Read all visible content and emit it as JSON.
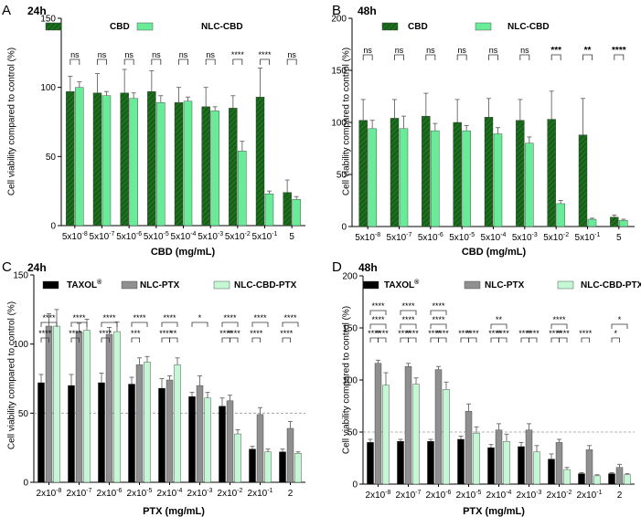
{
  "figure": {
    "colors": {
      "cbd": "#1d6e1d",
      "nlc_cbd": "#69eb98",
      "taxol": "#000000",
      "nlc_ptx": "#8f8f8f",
      "nlc_cbd_ptx": "#c4f7d4"
    }
  },
  "chart_data": [
    {
      "panel": "A",
      "title": "24h",
      "type": "bar",
      "xlabel": "CBD  (mg/mL)",
      "ylabel": "Cell viability compared to control (%)",
      "ylim": [
        0,
        150
      ],
      "yticks": [
        "0",
        "50",
        "100",
        "150"
      ],
      "categories": [
        "5x10-8",
        "5x10-7",
        "5x10-6",
        "5x10-5",
        "5x10-4",
        "5x10-3",
        "5x10-2",
        "5x10-1",
        "5"
      ],
      "category_labels": [
        {
          "base": "5x10",
          "exp": "-8"
        },
        {
          "base": "5x10",
          "exp": "-7"
        },
        {
          "base": "5x10",
          "exp": "-6"
        },
        {
          "base": "5x10",
          "exp": "-5"
        },
        {
          "base": "5x10",
          "exp": "-4"
        },
        {
          "base": "5x10",
          "exp": "-3"
        },
        {
          "base": "5x10",
          "exp": "-2"
        },
        {
          "base": "5x10",
          "exp": "-1"
        },
        {
          "base": "5",
          "exp": ""
        }
      ],
      "series": [
        {
          "name": "CBD",
          "color": "cbd",
          "values": [
            97,
            96,
            96,
            97,
            89,
            86,
            85,
            93,
            24
          ],
          "errors": [
            11,
            14,
            17,
            15,
            11,
            14,
            9,
            21,
            9
          ]
        },
        {
          "name": "NLC-CBD",
          "color": "nlc_cbd",
          "values": [
            100,
            94,
            92,
            89,
            90,
            83,
            54,
            23,
            19
          ],
          "errors": [
            4,
            3,
            4,
            5,
            3,
            3,
            7,
            2,
            2
          ]
        }
      ],
      "significance": [
        {
          "pair": [
            0,
            1
          ],
          "level": 0,
          "labels": [
            "ns",
            "ns",
            "ns",
            "ns",
            "ns",
            "ns",
            "****",
            "****",
            "ns"
          ]
        }
      ],
      "reference_line": null
    },
    {
      "panel": "B",
      "title": "48h",
      "type": "bar",
      "xlabel": "CBD (mg/mL)",
      "ylabel": "Cell viability compared to control (%)",
      "ylim": [
        0,
        200
      ],
      "yticks": [
        "0",
        "50",
        "100",
        "150",
        "200"
      ],
      "categories": [
        "5x10-8",
        "5x10-7",
        "5x10-6",
        "5x10-5",
        "5x10-4",
        "5x10-3",
        "5x10-2",
        "5x10-1",
        "5"
      ],
      "category_labels": [
        {
          "base": "5x10",
          "exp": "-8"
        },
        {
          "base": "5x10",
          "exp": "-7"
        },
        {
          "base": "5x10",
          "exp": "-6"
        },
        {
          "base": "5x10",
          "exp": "-5"
        },
        {
          "base": "5x10",
          "exp": "-4"
        },
        {
          "base": "5x10",
          "exp": "-3"
        },
        {
          "base": "5x10",
          "exp": "-2"
        },
        {
          "base": "5x10",
          "exp": "-1"
        },
        {
          "base": "5",
          "exp": ""
        }
      ],
      "series": [
        {
          "name": "CBD",
          "color": "cbd",
          "values": [
            102,
            104,
            106,
            100,
            105,
            102,
            103,
            88,
            9
          ],
          "errors": [
            20,
            18,
            22,
            22,
            18,
            20,
            27,
            35,
            2
          ]
        },
        {
          "name": "NLC-CBD",
          "color": "nlc_cbd",
          "values": [
            94,
            94,
            92,
            92,
            89,
            80,
            22,
            7,
            6
          ],
          "errors": [
            8,
            12,
            7,
            5,
            6,
            6,
            3,
            1,
            1
          ]
        }
      ],
      "significance": [
        {
          "pair": [
            0,
            1
          ],
          "level": 0,
          "labels": [
            "ns",
            "ns",
            "ns",
            "ns",
            "ns",
            "ns",
            "***",
            "**",
            "****"
          ]
        }
      ],
      "reference_line": null
    },
    {
      "panel": "C",
      "title": "24h",
      "type": "bar",
      "xlabel": "PTX (mg/mL)",
      "ylabel": "Cell viability compared to control (%)",
      "ylim": [
        0,
        150
      ],
      "yticks": [
        "0",
        "50",
        "100",
        "150"
      ],
      "categories": [
        "2x10-8",
        "2x10-7",
        "2x10-6",
        "2x10-5",
        "2x10-4",
        "2x10-3",
        "2x10-2",
        "2x10-1",
        "2"
      ],
      "category_labels": [
        {
          "base": "2x10",
          "exp": "-8"
        },
        {
          "base": "2x10",
          "exp": "-7"
        },
        {
          "base": "2x10",
          "exp": "-6"
        },
        {
          "base": "2x10",
          "exp": "-5"
        },
        {
          "base": "2x10",
          "exp": "-4"
        },
        {
          "base": "2x10",
          "exp": "-3"
        },
        {
          "base": "2x10",
          "exp": "-2"
        },
        {
          "base": "2x10",
          "exp": "-1"
        },
        {
          "base": "2",
          "exp": ""
        }
      ],
      "legend_labels": [
        {
          "base": "TAXOL",
          "sup": "®"
        },
        {
          "base": "NLC-PTX",
          "sup": ""
        },
        {
          "base": "NLC-CBD-PTX",
          "sup": ""
        }
      ],
      "series": [
        {
          "name": "TAXOL®",
          "color": "taxol",
          "values": [
            72,
            70,
            72,
            71,
            68,
            62,
            55,
            24,
            22
          ],
          "errors": [
            6,
            8,
            7,
            5,
            7,
            3,
            6,
            2,
            2
          ]
        },
        {
          "name": "NLC-PTX",
          "color": "nlc_ptx",
          "values": [
            113,
            109,
            107,
            85,
            74,
            70,
            59,
            49,
            39
          ],
          "errors": [
            9,
            6,
            5,
            5,
            3,
            7,
            4,
            5,
            5
          ]
        },
        {
          "name": "NLC-CBD-PTX",
          "color": "nlc_cbd_ptx",
          "values": [
            113,
            110,
            109,
            87,
            85,
            61,
            35,
            22,
            21
          ],
          "errors": [
            12,
            8,
            7,
            4,
            5,
            4,
            3,
            2,
            1
          ]
        }
      ],
      "significance": [
        {
          "pair": [
            0,
            1
          ],
          "level": 0,
          "labels": [
            "****",
            "****",
            "****",
            "***",
            "****",
            "",
            "****",
            "****",
            "****"
          ]
        },
        {
          "pair": [
            1,
            2
          ],
          "level": 0,
          "labels": [
            "",
            "",
            "",
            "",
            "**",
            "",
            "****",
            "",
            ""
          ]
        },
        {
          "pair": [
            0,
            2
          ],
          "level": 1,
          "labels": [
            "****",
            "****",
            "****",
            "****",
            "****",
            "*",
            "****",
            "****",
            "****"
          ]
        }
      ],
      "reference_line": 50
    },
    {
      "panel": "D",
      "title": "48h",
      "type": "bar",
      "xlabel": "PTX (mg/mL)",
      "ylabel": "Cell viability compared to control (%)",
      "ylim": [
        0,
        200
      ],
      "yticks": [
        "0",
        "50",
        "100",
        "150",
        "200"
      ],
      "categories": [
        "2x10-8",
        "2x10-7",
        "2x10-6",
        "2x10-5",
        "2x10-4",
        "2x10-3",
        "2x10-2",
        "2x10-1",
        "2"
      ],
      "category_labels": [
        {
          "base": "2x10",
          "exp": "-8"
        },
        {
          "base": "2x10",
          "exp": "-7"
        },
        {
          "base": "2x10",
          "exp": "-6"
        },
        {
          "base": "2x10",
          "exp": "-5"
        },
        {
          "base": "2x10",
          "exp": "-4"
        },
        {
          "base": "2x10",
          "exp": "-3"
        },
        {
          "base": "2x10",
          "exp": "-2"
        },
        {
          "base": "2x10",
          "exp": "-1"
        },
        {
          "base": "2",
          "exp": ""
        }
      ],
      "legend_labels": [
        {
          "base": "TAXOL",
          "sup": "®"
        },
        {
          "base": "NLC-PTX",
          "sup": ""
        },
        {
          "base": "NLC-CBD-PTX",
          "sup": ""
        }
      ],
      "series": [
        {
          "name": "TAXOL®",
          "color": "taxol",
          "values": [
            40,
            41,
            41,
            43,
            35,
            36,
            24,
            10,
            10
          ],
          "errors": [
            3,
            2,
            2,
            3,
            3,
            4,
            5,
            1,
            1
          ]
        },
        {
          "name": "NLC-PTX",
          "color": "nlc_ptx",
          "values": [
            116,
            113,
            110,
            70,
            52,
            52,
            40,
            33,
            16
          ],
          "errors": [
            3,
            3,
            3,
            7,
            6,
            6,
            3,
            4,
            3
          ]
        },
        {
          "name": "NLC-CBD-PTX",
          "color": "nlc_cbd_ptx",
          "values": [
            95,
            96,
            91,
            49,
            41,
            31,
            14,
            8,
            9
          ],
          "errors": [
            12,
            6,
            7,
            6,
            7,
            6,
            2,
            1,
            1
          ]
        }
      ],
      "significance": [
        {
          "pair": [
            0,
            1
          ],
          "level": 0,
          "labels": [
            "****",
            "****",
            "****",
            "****",
            "****",
            "****",
            "****",
            "****",
            "*"
          ]
        },
        {
          "pair": [
            1,
            2
          ],
          "level": 0,
          "labels": [
            "****",
            "****",
            "****",
            "****",
            "****",
            "****",
            "****",
            "",
            ""
          ]
        },
        {
          "pair": [
            0,
            2
          ],
          "level": 1,
          "labels": [
            "****",
            "****",
            "****",
            "",
            "**",
            "",
            "****",
            "",
            "*"
          ]
        },
        {
          "pair": [
            0,
            2
          ],
          "level": 2,
          "labels": [
            "****",
            "****",
            "****",
            "",
            "",
            "",
            "",
            "",
            ""
          ]
        }
      ],
      "reference_line": 50
    }
  ]
}
